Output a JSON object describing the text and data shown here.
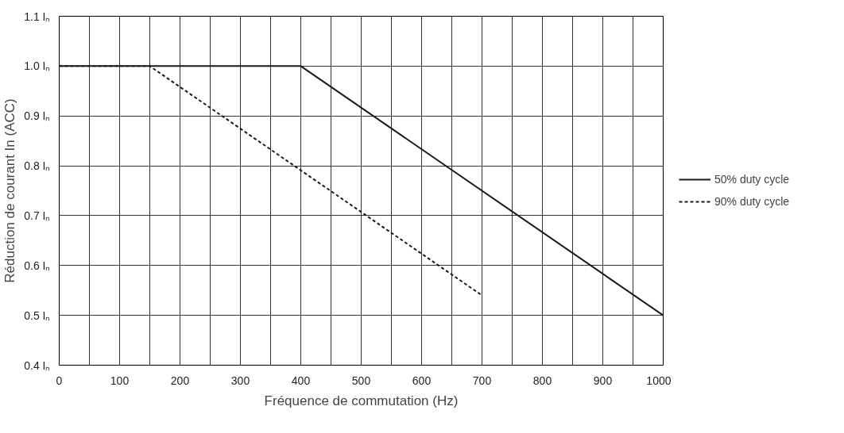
{
  "chart_data": {
    "type": "line",
    "xlabel": "Fréquence de commutation (Hz)",
    "ylabel": "Réduction de courant In (ACC)",
    "xlim": [
      0,
      1000
    ],
    "ylim": [
      0.4,
      1.1
    ],
    "xticks": [
      0,
      {
        "value": 50,
        "label": null
      },
      100,
      {
        "value": 150,
        "label": null
      },
      200,
      {
        "value": 250,
        "label": null
      },
      300,
      {
        "value": 350,
        "label": null
      },
      400,
      {
        "value": 450,
        "label": null
      },
      500,
      {
        "value": 550,
        "label": null
      },
      600,
      {
        "value": 650,
        "label": null
      },
      700,
      {
        "value": 750,
        "label": null
      },
      800,
      {
        "value": 850,
        "label": null
      },
      900,
      {
        "value": 950,
        "label": null
      },
      1000
    ],
    "yticks": [
      {
        "value": 0.4,
        "label": "0.4 Iₙ"
      },
      {
        "value": 0.5,
        "label": "0.5 Iₙ"
      },
      {
        "value": 0.6,
        "label": "0.6 Iₙ"
      },
      {
        "value": 0.7,
        "label": "0.7 Iₙ"
      },
      {
        "value": 0.8,
        "label": "0.8 Iₙ"
      },
      {
        "value": 0.9,
        "label": "0.9 Iₙ"
      },
      {
        "value": 1.0,
        "label": "1.0 Iₙ"
      },
      {
        "value": 1.1,
        "label": "1.1 Iₙ"
      }
    ],
    "grid": true,
    "legend": "right",
    "series": [
      {
        "name": "50% duty cycle",
        "color": "#1a1a1a",
        "line_style": "solid",
        "x": [
          0,
          400,
          1000
        ],
        "values": [
          1.0,
          1.0,
          0.5
        ]
      },
      {
        "name": "90% duty cycle",
        "color": "#1a1a1a",
        "line_style": "dashed",
        "x": [
          0,
          150,
          700
        ],
        "values": [
          1.0,
          1.0,
          0.54
        ]
      }
    ]
  }
}
